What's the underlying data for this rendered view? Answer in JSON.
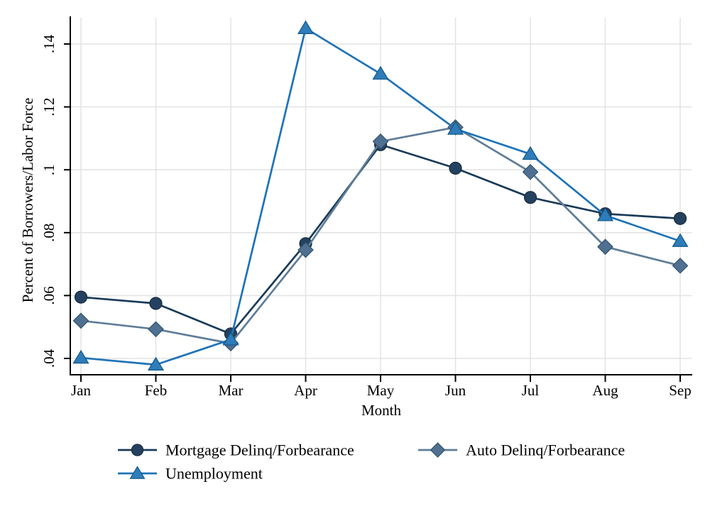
{
  "figure": {
    "background": "#ffffff",
    "axis_color": "#000000",
    "grid_color": "#e4e4e4",
    "text_color": "#000000"
  },
  "chart_data": {
    "type": "line",
    "title": "",
    "xlabel": "Month",
    "ylabel": "Percent of Borrowers/Labor Force",
    "categories": [
      "Jan",
      "Feb",
      "Mar",
      "Apr",
      "May",
      "Jun",
      "Jul",
      "Aug",
      "Sep"
    ],
    "y_tick_labels": [
      ".04",
      ".06",
      ".08",
      ".1",
      ".12",
      ".14"
    ],
    "y_tick_values": [
      0.04,
      0.06,
      0.08,
      0.1,
      0.12,
      0.14
    ],
    "ylim": [
      0.035,
      0.148
    ],
    "grid": true,
    "legend_position": "bottom",
    "series": [
      {
        "name": "Mortgage Delinq/Forbearance",
        "marker": "circle",
        "line_color": "#1a3a58",
        "marker_fill": "#24425f",
        "marker_edge": "#14293f",
        "values": [
          0.0595,
          0.0575,
          0.0478,
          0.0765,
          0.108,
          0.1005,
          0.0912,
          0.086,
          0.0845
        ]
      },
      {
        "name": "Auto Delinq/Forbearance",
        "marker": "diamond",
        "line_color": "#5e7d98",
        "marker_fill": "#4f7090",
        "marker_edge": "#33536e",
        "values": [
          0.052,
          0.0493,
          0.0448,
          0.0745,
          0.109,
          0.1135,
          0.0993,
          0.0755,
          0.0695
        ]
      },
      {
        "name": "Unemployment",
        "marker": "triangle",
        "line_color": "#1e73b7",
        "marker_fill": "#2e7cba",
        "marker_edge": "#125888",
        "values": [
          0.0402,
          0.038,
          0.046,
          0.145,
          0.1305,
          0.113,
          0.105,
          0.0855,
          0.0773
        ]
      }
    ]
  }
}
